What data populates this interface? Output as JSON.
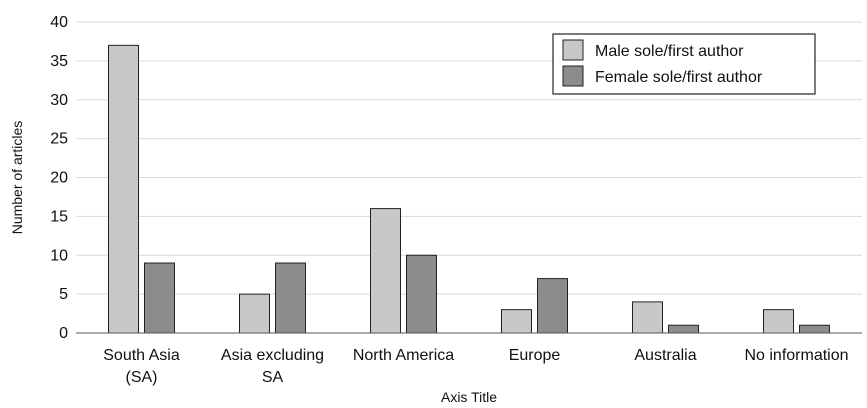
{
  "chart_data": {
    "type": "bar",
    "title": "",
    "xlabel": "Axis Title",
    "ylabel": "Number of articles",
    "ylim": [
      0,
      40
    ],
    "yticks": [
      0,
      5,
      10,
      15,
      20,
      25,
      30,
      35,
      40
    ],
    "grid": "horizontal",
    "legend_position": "top-right",
    "categories": [
      [
        "South Asia",
        "(SA)"
      ],
      [
        "Asia excluding",
        "SA"
      ],
      [
        "North America"
      ],
      [
        "Europe"
      ],
      [
        "Australia"
      ],
      [
        "No information"
      ]
    ],
    "series": [
      {
        "name": "Male sole/first author",
        "color": "#c8c8c8",
        "values": [
          37,
          5,
          16,
          3,
          4,
          3
        ]
      },
      {
        "name": "Female sole/first author",
        "color": "#8c8c8c",
        "values": [
          9,
          9,
          10,
          7,
          1,
          1
        ]
      }
    ]
  }
}
